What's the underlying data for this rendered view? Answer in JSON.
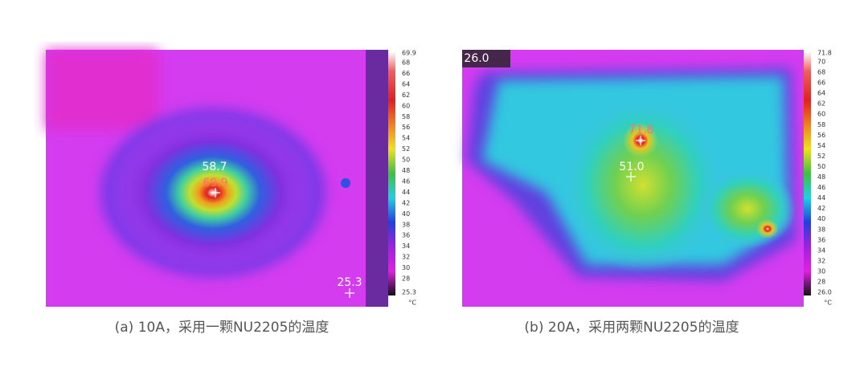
{
  "panels": [
    {
      "caption": "(a) 10A，采用一颗NU2205的温度",
      "scale": {
        "max": "69.9",
        "ticks": [
          "68",
          "66",
          "64",
          "62",
          "60",
          "58",
          "56",
          "54",
          "52",
          "50",
          "48",
          "46",
          "44",
          "42",
          "40",
          "38",
          "36",
          "34",
          "32",
          "30",
          "28"
        ],
        "min": "25.3",
        "unit": "°C"
      },
      "spots": [
        "58.7",
        "69.9",
        "25.3"
      ]
    },
    {
      "caption": "(b) 20A，采用两颗NU2205的温度",
      "scale": {
        "max": "71.8",
        "ticks": [
          "70",
          "68",
          "66",
          "64",
          "62",
          "60",
          "58",
          "56",
          "54",
          "52",
          "50",
          "48",
          "46",
          "44",
          "42",
          "40",
          "38",
          "36",
          "34",
          "32",
          "30",
          "28"
        ],
        "min": "26.0",
        "unit": "°C"
      },
      "spots": [
        "26.0",
        "71.8",
        "51.0"
      ]
    }
  ]
}
